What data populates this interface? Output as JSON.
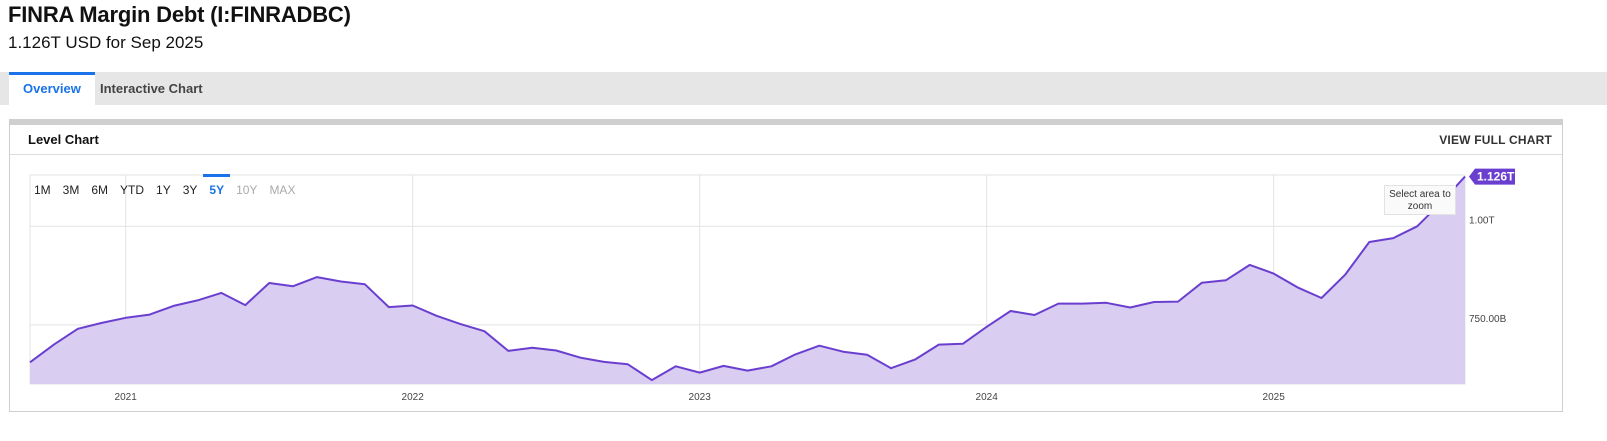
{
  "header": {
    "title": "FINRA Margin Debt (I:FINRADBC)",
    "subtitle": "1.126T USD for Sep 2025"
  },
  "tabs": [
    {
      "label": "Overview",
      "active": true
    },
    {
      "label": "Interactive Chart",
      "active": false
    }
  ],
  "panel": {
    "title": "Level Chart",
    "link_label": "VIEW FULL CHART"
  },
  "range_buttons": [
    {
      "label": "1M",
      "state": "normal"
    },
    {
      "label": "3M",
      "state": "normal"
    },
    {
      "label": "6M",
      "state": "normal"
    },
    {
      "label": "YTD",
      "state": "normal"
    },
    {
      "label": "1Y",
      "state": "normal"
    },
    {
      "label": "3Y",
      "state": "normal"
    },
    {
      "label": "5Y",
      "state": "active"
    },
    {
      "label": "10Y",
      "state": "disabled"
    },
    {
      "label": "MAX",
      "state": "disabled"
    }
  ],
  "zoom_hint": "Select area to zoom",
  "colors": {
    "line": "#6a3fd0",
    "area": "#d9cdf1",
    "badge": "#6a3fd0",
    "accent": "#1a73e8"
  },
  "chart_data": {
    "type": "area",
    "title": "",
    "xlabel": "",
    "ylabel": "",
    "x_ticks": [
      "2021",
      "2022",
      "2023",
      "2024",
      "2025"
    ],
    "y_ticks": [
      {
        "value": 750,
        "label": "750.00B"
      },
      {
        "value": 1000,
        "label": "1.00T"
      }
    ],
    "y_unit": "B USD",
    "ylim": [
      600,
      1130
    ],
    "xlim": [
      "2020-09",
      "2025-09"
    ],
    "last_value_label": "1.126T",
    "series": [
      {
        "points": [
          [
            "2020-09",
            655
          ],
          [
            "2020-10",
            700
          ],
          [
            "2020-11",
            740
          ],
          [
            "2020-12",
            755
          ],
          [
            "2021-01",
            768
          ],
          [
            "2021-02",
            776
          ],
          [
            "2021-03",
            798
          ],
          [
            "2021-04",
            812
          ],
          [
            "2021-05",
            831
          ],
          [
            "2021-06",
            800
          ],
          [
            "2021-07",
            856
          ],
          [
            "2021-08",
            848
          ],
          [
            "2021-09",
            871
          ],
          [
            "2021-10",
            860
          ],
          [
            "2021-11",
            853
          ],
          [
            "2021-12",
            795
          ],
          [
            "2022-01",
            799
          ],
          [
            "2022-02",
            773
          ],
          [
            "2022-03",
            752
          ],
          [
            "2022-04",
            734
          ],
          [
            "2022-05",
            684
          ],
          [
            "2022-06",
            692
          ],
          [
            "2022-07",
            685
          ],
          [
            "2022-08",
            667
          ],
          [
            "2022-09",
            656
          ],
          [
            "2022-10",
            650
          ],
          [
            "2022-11",
            610
          ],
          [
            "2022-12",
            645
          ],
          [
            "2023-01",
            629
          ],
          [
            "2023-02",
            646
          ],
          [
            "2023-03",
            634
          ],
          [
            "2023-04",
            645
          ],
          [
            "2023-05",
            675
          ],
          [
            "2023-06",
            697
          ],
          [
            "2023-07",
            682
          ],
          [
            "2023-08",
            674
          ],
          [
            "2023-09",
            640
          ],
          [
            "2023-10",
            662
          ],
          [
            "2023-11",
            700
          ],
          [
            "2023-12",
            702
          ],
          [
            "2024-01",
            745
          ],
          [
            "2024-02",
            785
          ],
          [
            "2024-03",
            775
          ],
          [
            "2024-04",
            804
          ],
          [
            "2024-05",
            804
          ],
          [
            "2024-06",
            806
          ],
          [
            "2024-07",
            794
          ],
          [
            "2024-08",
            808
          ],
          [
            "2024-09",
            809
          ],
          [
            "2024-10",
            857
          ],
          [
            "2024-11",
            863
          ],
          [
            "2024-12",
            902
          ],
          [
            "2025-01",
            880
          ],
          [
            "2025-02",
            845
          ],
          [
            "2025-03",
            818
          ],
          [
            "2025-04",
            878
          ],
          [
            "2025-05",
            960
          ],
          [
            "2025-06",
            970
          ],
          [
            "2025-07",
            1000
          ],
          [
            "2025-08",
            1060
          ],
          [
            "2025-09",
            1126
          ]
        ]
      }
    ],
    "grid": true,
    "legend": "none"
  }
}
